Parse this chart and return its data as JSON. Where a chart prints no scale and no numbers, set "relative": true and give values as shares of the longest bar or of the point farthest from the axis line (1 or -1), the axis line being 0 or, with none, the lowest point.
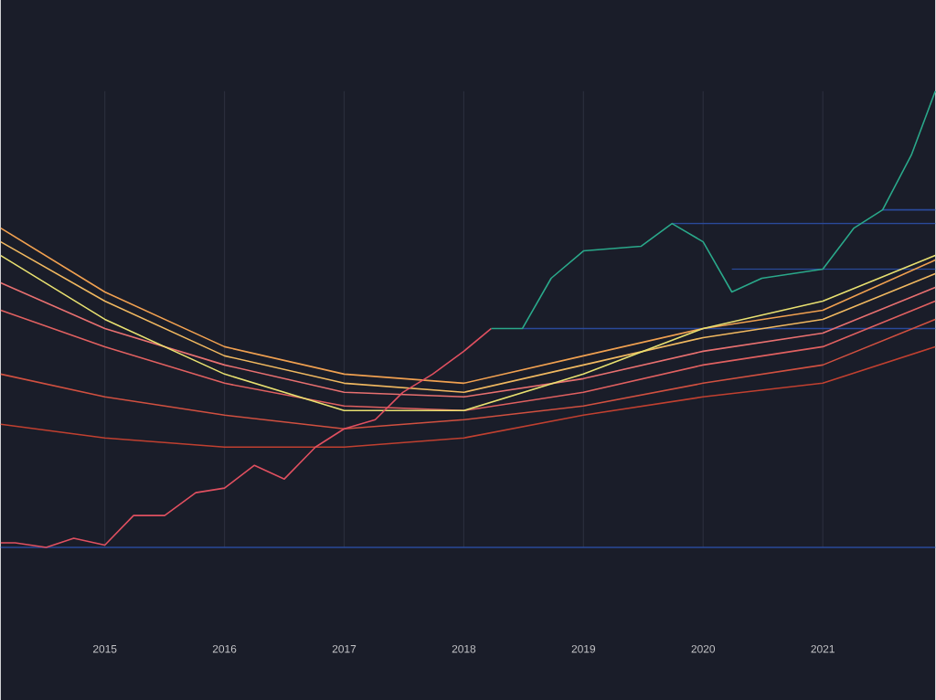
{
  "chart_data": {
    "type": "line",
    "relative": true,
    "tick_labels": "x",
    "grid": "x",
    "marker": "none",
    "line_style": "solid",
    "xlim": [
      2014.13,
      2021.94
    ],
    "xticks": [
      2015,
      2016,
      2017,
      2018,
      2019,
      2020,
      2021
    ],
    "ref_lines": [
      {
        "axis": "y",
        "value": 0,
        "color": "#2a4a9a"
      }
    ],
    "series": [
      {
        "color": "#2a4a9a",
        "x": [
          2018.49,
          2021.94
        ],
        "values": [
          0.48,
          0.48
        ]
      },
      {
        "color": "#2a4a9a",
        "x": [
          2019.74,
          2021.94
        ],
        "values": [
          0.71,
          0.71
        ]
      },
      {
        "color": "#2a4a9a",
        "x": [
          2020.24,
          2021.94
        ],
        "values": [
          0.61,
          0.61
        ]
      },
      {
        "color": "#2a4a9a",
        "x": [
          2021.5,
          2021.94
        ],
        "values": [
          0.74,
          0.74
        ]
      },
      {
        "color": "#c04030",
        "x": [
          2014.13,
          2015,
          2016,
          2017,
          2018,
          2019,
          2020,
          2021,
          2021.94
        ],
        "values": [
          0.27,
          0.24,
          0.22,
          0.22,
          0.24,
          0.29,
          0.33,
          0.36,
          0.44
        ]
      },
      {
        "color": "#d05040",
        "x": [
          2014.13,
          2015,
          2016,
          2017,
          2018,
          2019,
          2020,
          2021,
          2021.94
        ],
        "values": [
          0.38,
          0.33,
          0.29,
          0.26,
          0.28,
          0.31,
          0.36,
          0.4,
          0.5
        ]
      },
      {
        "color": "#e06060",
        "x": [
          2014.13,
          2015,
          2016,
          2017,
          2018,
          2019,
          2020,
          2021,
          2021.94
        ],
        "values": [
          0.52,
          0.44,
          0.36,
          0.31,
          0.3,
          0.34,
          0.4,
          0.44,
          0.54
        ]
      },
      {
        "color": "#e87070",
        "x": [
          2014.13,
          2015,
          2016,
          2017,
          2018,
          2019,
          2020,
          2021,
          2021.94
        ],
        "values": [
          0.58,
          0.48,
          0.4,
          0.34,
          0.33,
          0.37,
          0.43,
          0.47,
          0.57
        ]
      },
      {
        "color": "#f0b860",
        "x": [
          2014.13,
          2015,
          2016,
          2017,
          2018,
          2019,
          2020,
          2021,
          2021.94
        ],
        "values": [
          0.67,
          0.54,
          0.42,
          0.36,
          0.34,
          0.4,
          0.46,
          0.5,
          0.6
        ]
      },
      {
        "color": "#f0a050",
        "x": [
          2014.13,
          2015,
          2016,
          2017,
          2018,
          2019,
          2020,
          2021,
          2021.94
        ],
        "values": [
          0.7,
          0.56,
          0.44,
          0.38,
          0.36,
          0.42,
          0.48,
          0.52,
          0.63
        ]
      },
      {
        "color": "#e8e070",
        "x": [
          2014.13,
          2015,
          2016,
          2017,
          2018,
          2019,
          2020,
          2021,
          2021.94
        ],
        "values": [
          0.64,
          0.5,
          0.38,
          0.3,
          0.3,
          0.38,
          0.48,
          0.54,
          0.64
        ]
      },
      {
        "color": "#e05060",
        "x": [
          2014.13,
          2014.25,
          2014.51,
          2014.74,
          2015,
          2015.24,
          2015.5,
          2015.76,
          2016,
          2016.25,
          2016.5,
          2016.76,
          2017,
          2017.26,
          2017.49,
          2017.74,
          2018,
          2018.23
        ],
        "values": [
          0.01,
          0.01,
          0,
          0.02,
          0.005,
          0.07,
          0.07,
          0.12,
          0.13,
          0.18,
          0.15,
          0.22,
          0.26,
          0.28,
          0.34,
          0.38,
          0.43,
          0.48
        ]
      },
      {
        "color": "#2aa88a",
        "x": [
          2018.23,
          2018.49,
          2018.73,
          2019,
          2019.48,
          2019.74,
          2020,
          2020.24,
          2020.49,
          2021,
          2021.26,
          2021.5,
          2021.74,
          2021.94
        ],
        "values": [
          0.48,
          0.48,
          0.59,
          0.65,
          0.66,
          0.71,
          0.67,
          0.56,
          0.59,
          0.61,
          0.7,
          0.74,
          0.86,
          1
        ]
      }
    ]
  }
}
